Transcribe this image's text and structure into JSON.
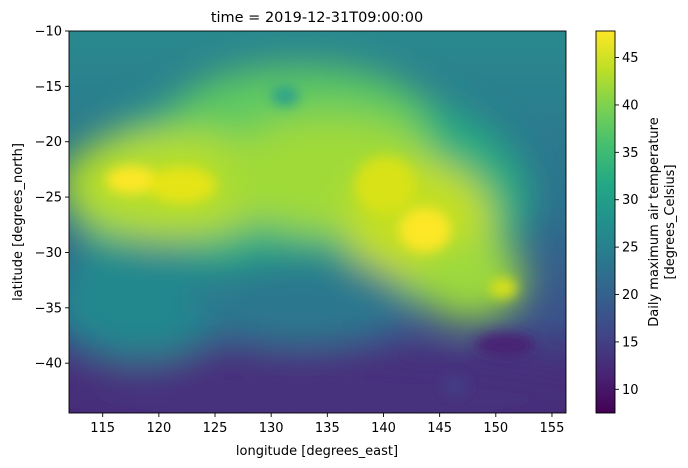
{
  "chart_data": {
    "type": "heatmap",
    "title": "time = 2019-12-31T09:00:00",
    "xlabel": "longitude [degrees_east]",
    "ylabel": "latitude [degrees_north]",
    "xlim": [
      112,
      156.25
    ],
    "ylim": [
      -44.5,
      -10
    ],
    "x_ticks": [
      115,
      120,
      125,
      130,
      135,
      140,
      145,
      150,
      155
    ],
    "y_ticks": [
      -40,
      -35,
      -30,
      -25,
      -20,
      -15,
      -10
    ],
    "x_tick_labels": [
      "115",
      "120",
      "125",
      "130",
      "135",
      "140",
      "145",
      "150",
      "155"
    ],
    "y_tick_labels": [
      "−40",
      "−35",
      "−30",
      "−25",
      "−20",
      "−15",
      "−10"
    ],
    "colorbar": {
      "label_line1": "Daily maximum air temperature",
      "label_line2": "[degrees_Celsius]",
      "range": [
        7.5,
        47.8
      ],
      "ticks": [
        10,
        15,
        20,
        25,
        30,
        35,
        40,
        45
      ],
      "tick_labels": [
        "10",
        "15",
        "20",
        "25",
        "30",
        "35",
        "40",
        "45"
      ],
      "colormap": "viridis"
    },
    "z_features": [
      {
        "lon": 118,
        "lat": -23.5,
        "value": 47
      },
      {
        "lon": 123,
        "lat": -23.8,
        "value": 45
      },
      {
        "lon": 130,
        "lat": -21,
        "value": 40
      },
      {
        "lon": 140,
        "lat": -24,
        "value": 44
      },
      {
        "lon": 143,
        "lat": -29,
        "value": 45
      },
      {
        "lon": 151,
        "lat": -33,
        "value": 42
      },
      {
        "lon": 131,
        "lat": -15.8,
        "value": 30
      },
      {
        "lon": 134,
        "lat": -36,
        "value": 18
      },
      {
        "lon": 145,
        "lat": -37.5,
        "value": 16
      },
      {
        "lon": 140,
        "lat": -43,
        "value": 10
      }
    ]
  }
}
